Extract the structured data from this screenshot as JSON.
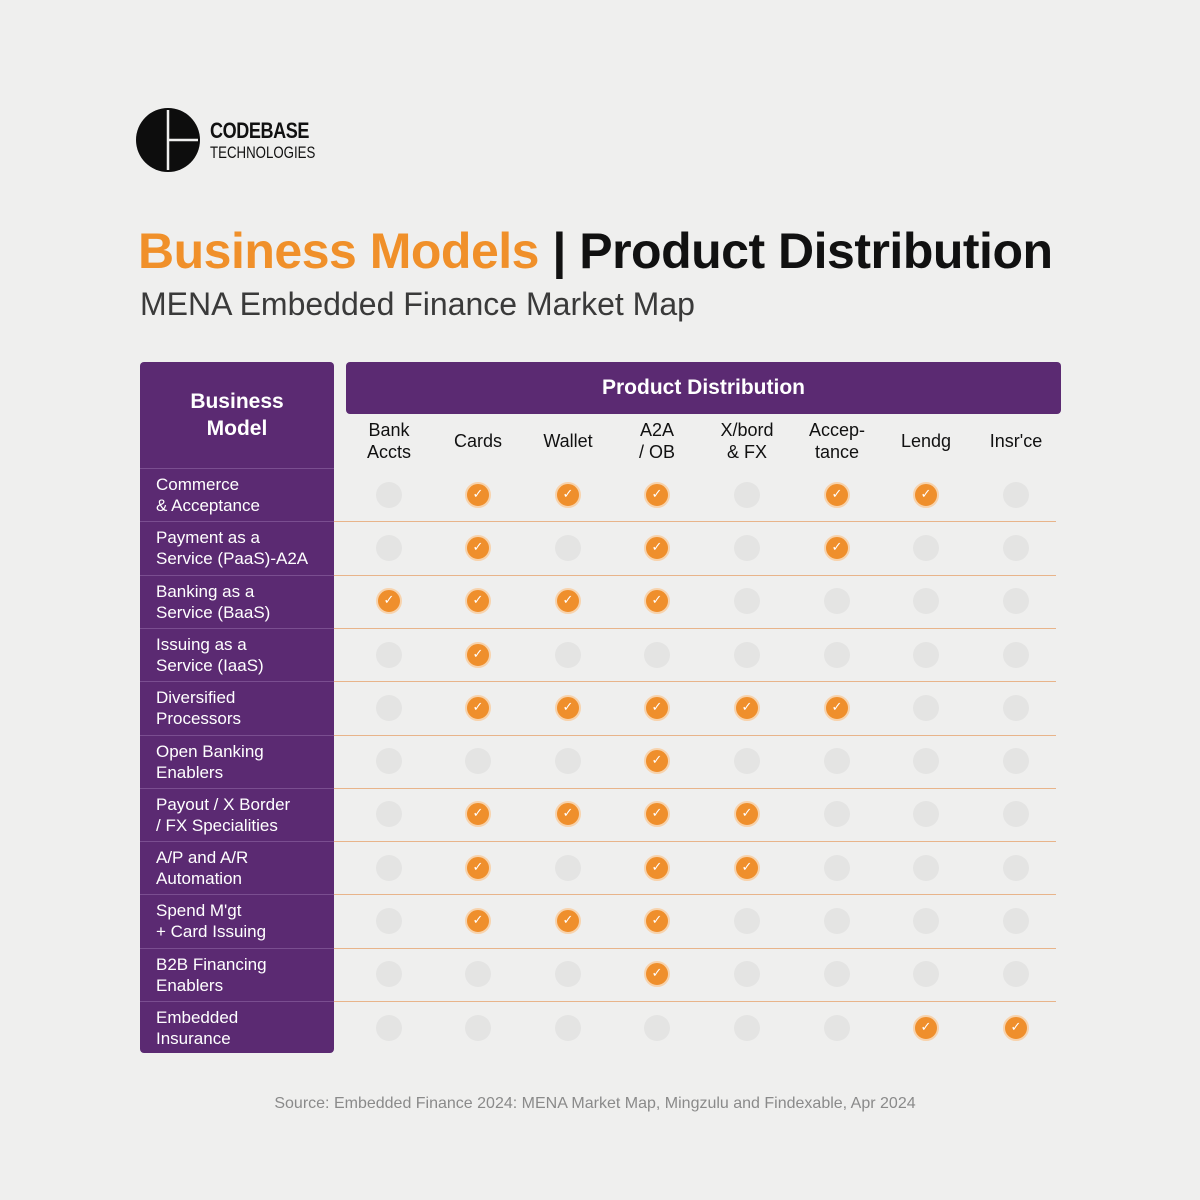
{
  "logo": {
    "line1": "CODEBASE",
    "line2": "TECHNOLOGIES"
  },
  "title": {
    "highlight": "Business Models",
    "separator": " | ",
    "rest": "Product Distribution"
  },
  "subtitle": "MENA Embedded Finance Market Map",
  "colors": {
    "accent": "#f0902a",
    "purple": "#5b2a72",
    "dot_off": "#e4e4e3",
    "background": "#efefee"
  },
  "chart_data": {
    "type": "table",
    "row_header": "Business\nModel",
    "column_group": "Product Distribution",
    "columns": [
      "Bank\nAccts",
      "Cards",
      "Wallet",
      "A2A\n/ OB",
      "X/bord\n& FX",
      "Accep-\ntance",
      "Lendg",
      "Insr'ce"
    ],
    "rows": [
      {
        "label": "Commerce\n& Acceptance",
        "values": [
          0,
          1,
          1,
          1,
          0,
          1,
          1,
          0
        ]
      },
      {
        "label": "Payment as a\nService (PaaS)-A2A",
        "values": [
          0,
          1,
          0,
          1,
          0,
          1,
          0,
          0
        ]
      },
      {
        "label": "Banking as a\nService (BaaS)",
        "values": [
          1,
          1,
          1,
          1,
          0,
          0,
          0,
          0
        ]
      },
      {
        "label": "Issuing as a\nService (IaaS)",
        "values": [
          0,
          1,
          0,
          0,
          0,
          0,
          0,
          0
        ]
      },
      {
        "label": "Diversified\nProcessors",
        "values": [
          0,
          1,
          1,
          1,
          1,
          1,
          0,
          0
        ]
      },
      {
        "label": "Open Banking\nEnablers",
        "values": [
          0,
          0,
          0,
          1,
          0,
          0,
          0,
          0
        ]
      },
      {
        "label": "Payout / X Border\n/ FX Specialities",
        "values": [
          0,
          1,
          1,
          1,
          1,
          0,
          0,
          0
        ]
      },
      {
        "label": "A/P and A/R\nAutomation",
        "values": [
          0,
          1,
          0,
          1,
          1,
          0,
          0,
          0
        ]
      },
      {
        "label": "Spend M'gt\n+ Card Issuing",
        "values": [
          0,
          1,
          1,
          1,
          0,
          0,
          0,
          0
        ]
      },
      {
        "label": "B2B Financing\nEnablers",
        "values": [
          0,
          0,
          0,
          1,
          0,
          0,
          0,
          0
        ]
      },
      {
        "label": "Embedded\nInsurance",
        "values": [
          0,
          0,
          0,
          0,
          0,
          0,
          1,
          1
        ]
      }
    ]
  },
  "source": "Source: Embedded Finance 2024: MENA Market Map, Mingzulu and Findexable, Apr 2024"
}
